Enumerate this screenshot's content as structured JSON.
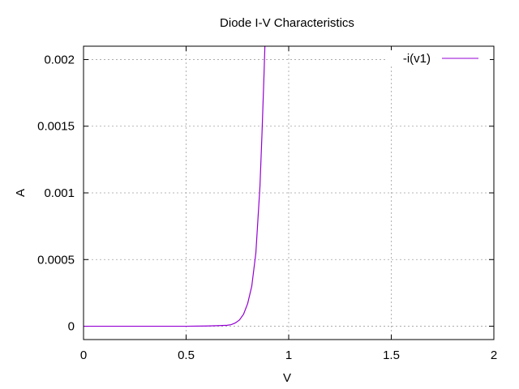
{
  "chart_data": {
    "type": "line",
    "title": "Diode I-V Characteristics",
    "xlabel": "V",
    "ylabel": "A",
    "xlim": [
      0,
      2
    ],
    "ylim": [
      -0.0001,
      0.0021
    ],
    "xticks": [
      0,
      0.5,
      1,
      1.5,
      2
    ],
    "xtick_labels": [
      "0",
      "0.5",
      "1",
      "1.5",
      "2"
    ],
    "yticks": [
      0,
      0.0005,
      0.001,
      0.0015,
      0.002
    ],
    "ytick_labels": [
      "0",
      "0.0005",
      "0.001",
      "0.0015",
      "0.002"
    ],
    "grid": true,
    "legend_position": "top-right",
    "series": [
      {
        "name": "-i(v1)",
        "color": "#9400d3",
        "x": [
          0,
          0.1,
          0.2,
          0.3,
          0.4,
          0.5,
          0.6,
          0.65,
          0.7,
          0.72,
          0.74,
          0.76,
          0.78,
          0.8,
          0.82,
          0.84,
          0.86,
          0.87,
          0.88,
          0.884
        ],
        "y": [
          0,
          0,
          0,
          0,
          0,
          0,
          2e-06,
          4e-06,
          7e-06,
          1.2e-05,
          2.5e-05,
          4.7e-05,
          9e-05,
          0.00017,
          0.0003,
          0.00055,
          0.00105,
          0.00145,
          0.0019,
          0.0021
        ]
      }
    ]
  }
}
